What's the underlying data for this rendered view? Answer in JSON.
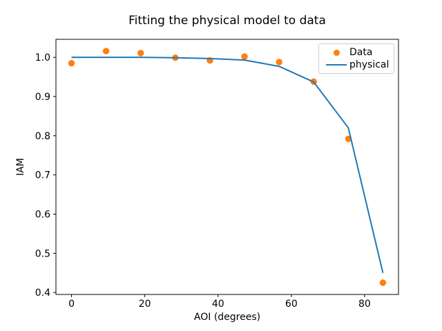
{
  "figure": {
    "title": "Fitting the physical model to data",
    "xlabel": "AOI (degrees)",
    "ylabel": "IAM"
  },
  "chart_data": {
    "type": "scatter",
    "title": "Fitting the physical model to data",
    "xlabel": "AOI (degrees)",
    "ylabel": "IAM",
    "xlim": [
      -4.25,
      89.25
    ],
    "ylim": [
      0.395,
      1.046
    ],
    "xticks": [
      0,
      20,
      40,
      60,
      80
    ],
    "yticks": [
      0.4,
      0.5,
      0.6,
      0.7,
      0.8,
      0.9,
      1.0
    ],
    "grid": false,
    "legend": {
      "position": "upper right",
      "entries": [
        {
          "label": "Data",
          "type": "marker",
          "color": "#ff7f0e"
        },
        {
          "label": "physical",
          "type": "line",
          "color": "#1f77b4"
        }
      ]
    },
    "series": [
      {
        "name": "Data",
        "type": "scatter",
        "color": "#ff7f0e",
        "x": [
          0.0,
          9.44,
          18.89,
          28.33,
          37.78,
          47.22,
          56.67,
          66.11,
          75.56,
          85.0
        ],
        "y": [
          0.985,
          1.016,
          1.011,
          0.999,
          0.992,
          1.002,
          0.988,
          0.938,
          0.792,
          0.425
        ]
      },
      {
        "name": "physical",
        "type": "line",
        "color": "#1f77b4",
        "x": [
          0.0,
          9.44,
          18.89,
          28.33,
          37.78,
          47.22,
          56.67,
          66.11,
          75.56,
          85.0
        ],
        "y": [
          1.0,
          1.0,
          1.0,
          0.999,
          0.997,
          0.993,
          0.977,
          0.937,
          0.82,
          0.45
        ]
      }
    ]
  },
  "colors": {
    "data_marker": "#ff7f0e",
    "physical_line": "#1f77b4",
    "spine": "#000000",
    "legend_border": "#cccccc",
    "background": "#ffffff"
  }
}
